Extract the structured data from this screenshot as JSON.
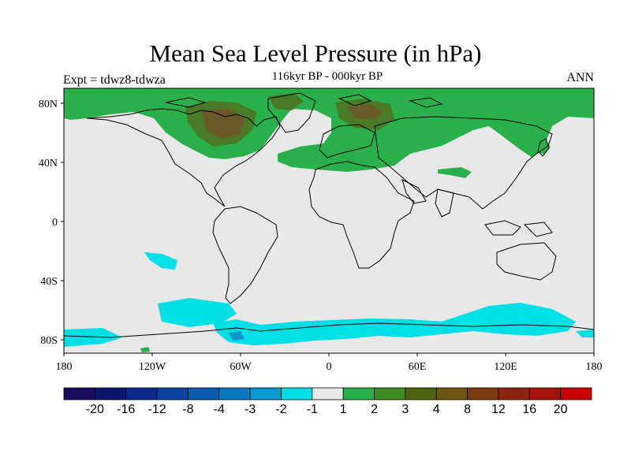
{
  "header": {
    "title": "Mean Sea Level Pressure (in hPa)",
    "subtitle": "116kyr BP - 000kyr BP",
    "experiment": "Expt = tdwz8-tdwza",
    "season": "ANN"
  },
  "axes": {
    "lat_labels": [
      "80N",
      "40N",
      "0",
      "40S",
      "80S"
    ],
    "lon_labels": [
      "180",
      "120W",
      "60W",
      "0",
      "60E",
      "120E",
      "180"
    ]
  },
  "colorbar": {
    "colors": [
      "#1a0a5c",
      "#0a166e",
      "#0a2a8e",
      "#0a42a2",
      "#0a5ab0",
      "#0a78c0",
      "#0a9ad0",
      "#00dfe6",
      "#e8e8e8",
      "#2ab04a",
      "#3e8a1e",
      "#4e6410",
      "#6a5812",
      "#7a3a10",
      "#8e2410",
      "#a4140a",
      "#cc0000"
    ],
    "labels": [
      "-20",
      "-16",
      "-12",
      "-8",
      "-4",
      "-3",
      "-2",
      "-1",
      "1",
      "2",
      "3",
      "4",
      "8",
      "12",
      "16",
      "20"
    ]
  },
  "palette": {
    "background": "#e8e8e8",
    "green": "#2ab04a",
    "dark_green": "#4a7a28",
    "brown": "#6a5a28",
    "cyan": "#00dfe6",
    "mid_blue": "#0a9ad0",
    "coast": "#000000"
  }
}
